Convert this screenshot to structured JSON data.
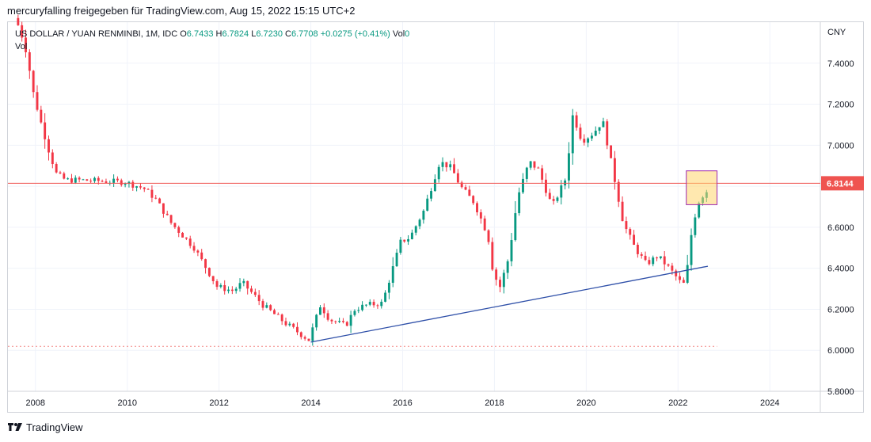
{
  "caption": "mercuryfalling freigegeben für TradingView.com, Aug 15, 2022 15:15 UTC+2",
  "legend": {
    "symbol": "US DOLLAR / YUAN RENMINBI, 1M, IDC",
    "o_label": "O",
    "o": "6.7433",
    "h_label": "H",
    "h": "6.7824",
    "l_label": "L",
    "l": "6.7230",
    "c_label": "C",
    "c": "6.7708",
    "change": "+0.0275 (+0.41%)",
    "vol_label": "Vol",
    "vol": "0",
    "vol_row": "Vol"
  },
  "footer": {
    "brand": "TradingView"
  },
  "chart_data": {
    "type": "candlestick",
    "currency_label": "CNY",
    "y_ticks": [
      "7.4000",
      "7.2000",
      "7.0000",
      "6.8000",
      "6.6000",
      "6.4000",
      "6.2000",
      "6.0000",
      "5.8000"
    ],
    "ylim": [
      5.8,
      7.6
    ],
    "x_ticks": [
      "2008",
      "2010",
      "2012",
      "2014",
      "2016",
      "2018",
      "2020",
      "2022",
      "2024"
    ],
    "xlim": [
      2007.4,
      2025.1
    ],
    "horizontal_line": {
      "value": 6.8144,
      "label": "6.8144",
      "color": "#ef5350"
    },
    "dotted_line": {
      "value": 6.0191,
      "color": "#ef5350"
    },
    "trendline": {
      "start": [
        2014.0,
        6.04
      ],
      "end": [
        2022.65,
        6.41
      ],
      "color": "#2e4fa8"
    },
    "highlight_box": {
      "x_range": [
        2022.18,
        2022.85
      ],
      "y_range": [
        6.71,
        6.875
      ],
      "fill": "#ffd66e",
      "border": "#9c27b0"
    },
    "colors": {
      "up": "#089981",
      "down": "#f23645"
    },
    "anchors": [
      [
        2007.58,
        7.62
      ],
      [
        2007.7,
        7.57
      ],
      [
        2007.85,
        7.45
      ],
      [
        2008.0,
        7.25
      ],
      [
        2008.15,
        7.12
      ],
      [
        2008.35,
        6.96
      ],
      [
        2008.5,
        6.86
      ],
      [
        2008.7,
        6.83
      ],
      [
        2009.0,
        6.83
      ],
      [
        2010.0,
        6.82
      ],
      [
        2010.4,
        6.79
      ],
      [
        2010.65,
        6.74
      ],
      [
        2011.0,
        6.62
      ],
      [
        2011.5,
        6.5
      ],
      [
        2012.0,
        6.31
      ],
      [
        2012.35,
        6.29
      ],
      [
        2012.55,
        6.33
      ],
      [
        2012.8,
        6.27
      ],
      [
        2013.0,
        6.22
      ],
      [
        2013.5,
        6.13
      ],
      [
        2014.0,
        6.05
      ],
      [
        2014.25,
        6.22
      ],
      [
        2014.45,
        6.15
      ],
      [
        2014.8,
        6.12
      ],
      [
        2015.0,
        6.2
      ],
      [
        2015.25,
        6.22
      ],
      [
        2015.6,
        6.23
      ],
      [
        2016.0,
        6.53
      ],
      [
        2016.2,
        6.55
      ],
      [
        2016.5,
        6.68
      ],
      [
        2016.85,
        6.92
      ],
      [
        2017.1,
        6.89
      ],
      [
        2017.3,
        6.8
      ],
      [
        2017.6,
        6.72
      ],
      [
        2017.9,
        6.56
      ],
      [
        2018.0,
        6.4
      ],
      [
        2018.15,
        6.3
      ],
      [
        2018.35,
        6.45
      ],
      [
        2018.55,
        6.75
      ],
      [
        2018.8,
        6.92
      ],
      [
        2019.0,
        6.88
      ],
      [
        2019.3,
        6.7
      ],
      [
        2019.6,
        6.84
      ],
      [
        2019.75,
        7.15
      ],
      [
        2019.95,
        7.02
      ],
      [
        2020.2,
        7.06
      ],
      [
        2020.4,
        7.12
      ],
      [
        2020.6,
        6.9
      ],
      [
        2020.85,
        6.62
      ],
      [
        2021.1,
        6.5
      ],
      [
        2021.35,
        6.42
      ],
      [
        2021.6,
        6.46
      ],
      [
        2021.85,
        6.4
      ],
      [
        2022.1,
        6.33
      ],
      [
        2022.2,
        6.32
      ],
      [
        2022.35,
        6.6
      ],
      [
        2022.48,
        6.72
      ],
      [
        2022.65,
        6.78
      ]
    ],
    "last_candle": {
      "open": 6.7433,
      "high": 6.7824,
      "low": 6.723,
      "close": 6.7708
    }
  }
}
